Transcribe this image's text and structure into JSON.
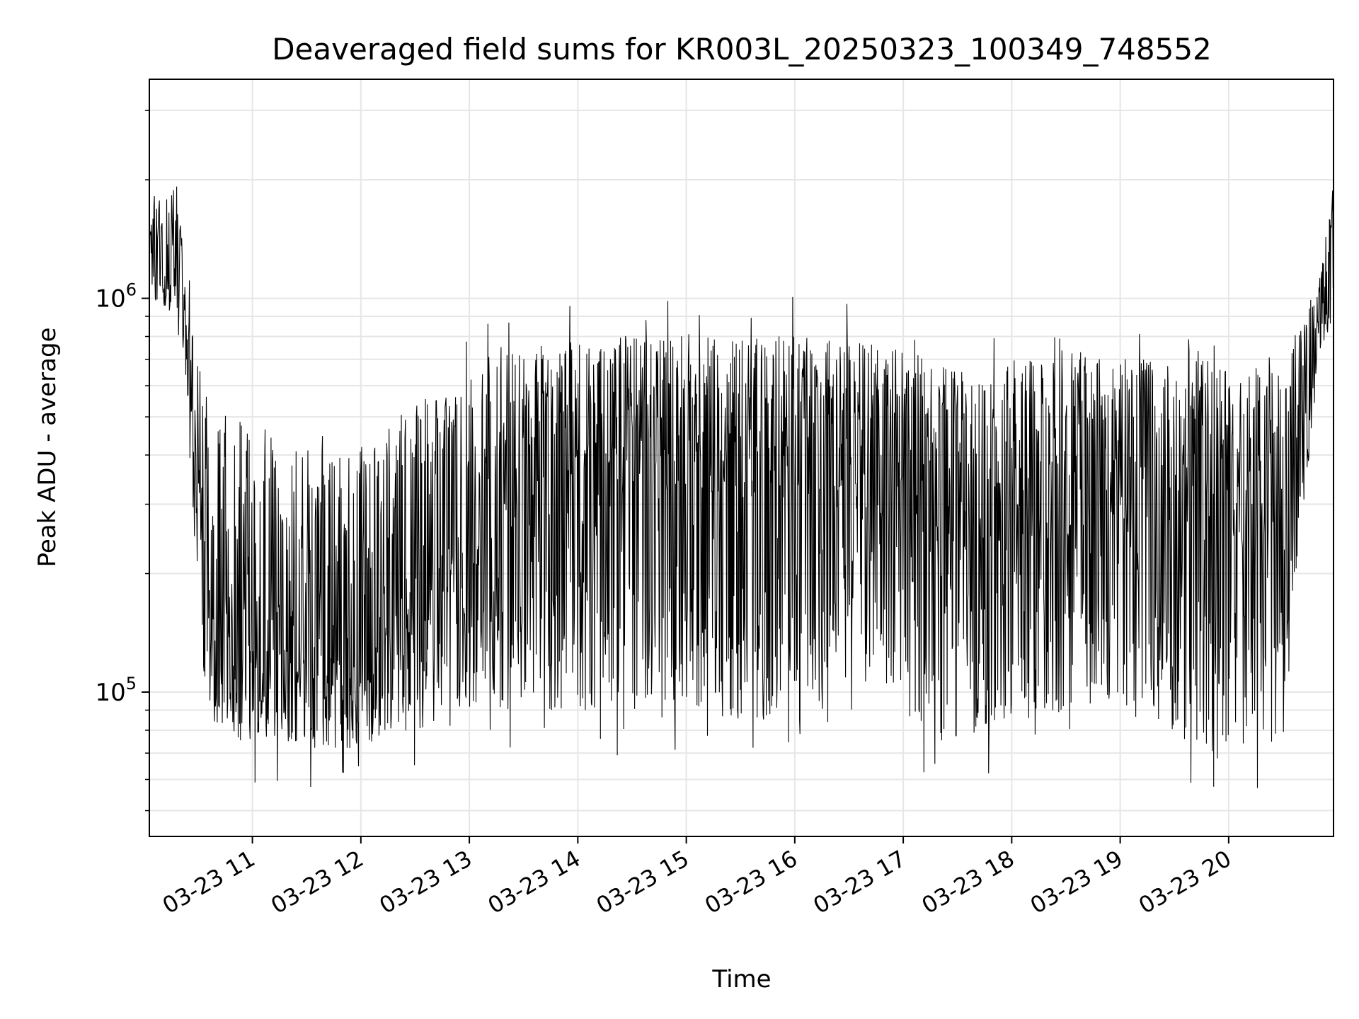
{
  "chart_data": {
    "type": "line",
    "title": "Deaveraged field sums for KR003L_20250323_100349_748552",
    "xlabel": "Time",
    "ylabel": "Peak ADU - average",
    "yscale": "log",
    "grid": true,
    "xlim": [
      "2025-03-23 10:03",
      "2025-03-23 20:58"
    ],
    "ylim": [
      43000,
      3600000
    ],
    "x_tick_labels": [
      "03-23 11",
      "03-23 12",
      "03-23 13",
      "03-23 14",
      "03-23 15",
      "03-23 16",
      "03-23 17",
      "03-23 18",
      "03-23 19",
      "03-23 20"
    ],
    "y_tick_labels": [
      {
        "value": 100000,
        "base": "10",
        "exp": "5"
      },
      {
        "value": 1000000,
        "base": "10",
        "exp": "6"
      }
    ],
    "line_color": "#000000",
    "series_profile": {
      "x": [
        "2025-03-23 10:03",
        "2025-03-23 10:10",
        "2025-03-23 10:18",
        "2025-03-23 10:25",
        "2025-03-23 10:35",
        "2025-03-23 11:00",
        "2025-03-23 11:30",
        "2025-03-23 12:00",
        "2025-03-23 12:30",
        "2025-03-23 13:00",
        "2025-03-23 13:30",
        "2025-03-23 14:00",
        "2025-03-23 15:00",
        "2025-03-23 16:00",
        "2025-03-23 17:00",
        "2025-03-23 17:30",
        "2025-03-23 18:00",
        "2025-03-23 19:00",
        "2025-03-23 19:50",
        "2025-03-23 20:30",
        "2025-03-23 20:40",
        "2025-03-23 20:50",
        "2025-03-23 20:58"
      ],
      "high": [
        1900000,
        1800000,
        2000000,
        900000,
        550000,
        500000,
        420000,
        420000,
        550000,
        650000,
        750000,
        800000,
        820000,
        800000,
        750000,
        650000,
        700000,
        720000,
        700000,
        650000,
        900000,
        1100000,
        2000000
      ],
      "low": [
        1000000,
        950000,
        900000,
        400000,
        80000,
        75000,
        72000,
        72000,
        80000,
        90000,
        90000,
        90000,
        85000,
        85000,
        85000,
        70000,
        85000,
        90000,
        70000,
        75000,
        250000,
        700000,
        900000
      ],
      "typical": [
        1300000,
        1200000,
        1300000,
        650000,
        170000,
        140000,
        130000,
        120000,
        170000,
        230000,
        300000,
        350000,
        380000,
        380000,
        330000,
        200000,
        270000,
        330000,
        300000,
        260000,
        450000,
        850000,
        1200000
      ]
    }
  }
}
